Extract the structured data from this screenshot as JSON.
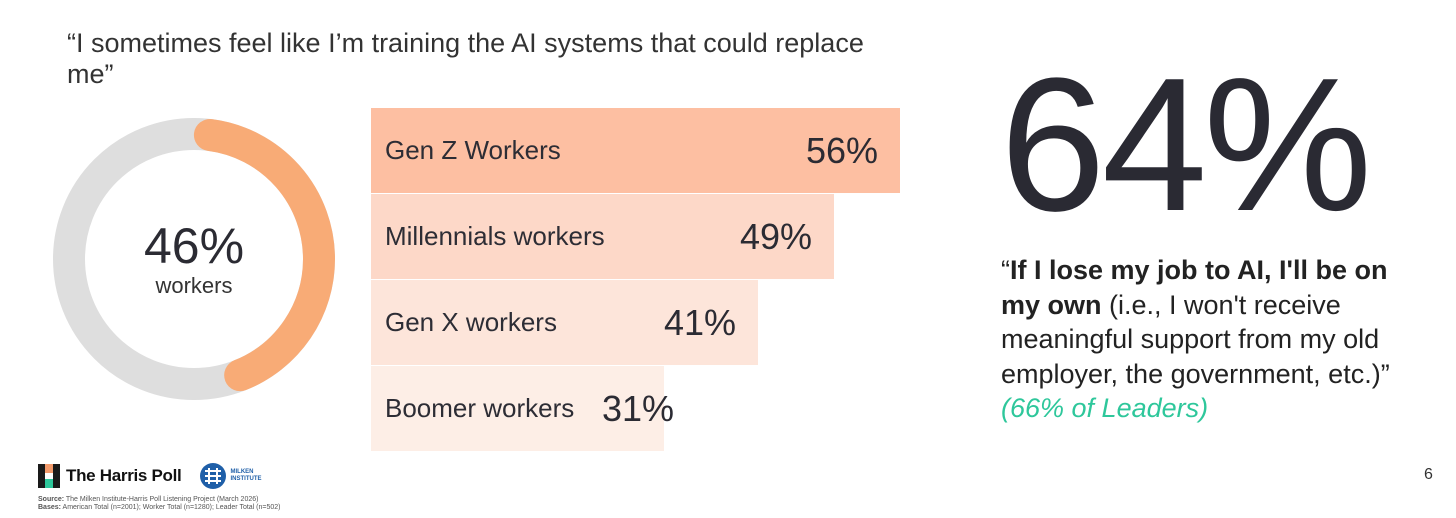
{
  "title": "“I sometimes feel like I’m training the AI systems that could replace me”",
  "donut": {
    "value_label": "46%",
    "sublabel": "workers",
    "percent": 46,
    "fill_color": "#f8ab76",
    "track_color": "#dedede"
  },
  "chart_data": {
    "type": "bar",
    "orientation": "horizontal",
    "categories": [
      "Gen Z Workers",
      "Millennials workers",
      "Gen X workers",
      "Boomer workers"
    ],
    "values": [
      56,
      49,
      41,
      31
    ],
    "value_labels": [
      "56%",
      "49%",
      "41%",
      "31%"
    ],
    "xlim": [
      0,
      100
    ],
    "colors": [
      "#fdbfa2",
      "#fdd8c8",
      "#fde5da",
      "#fdeee6"
    ],
    "title": "",
    "xlabel": "",
    "ylabel": ""
  },
  "highlight": {
    "stat": "64%",
    "quote_open": "“",
    "quote_bold": "If I lose my job to AI, I'll be on my own",
    "quote_rest": " (i.e., I won't receive meaningful support from my old employer, the government, etc.)”",
    "leaders_note": "(66% of Leaders)",
    "accent_color": "#2ec79b"
  },
  "footer": {
    "harris_logo": "The Harris Poll",
    "milken_logo_line1": "MILKEN",
    "milken_logo_line2": "INSTITUTE",
    "source_label": "Source:",
    "source_text": " The Milken Institute-Harris Poll Listening Project (March 2026)",
    "bases_label": "Bases:",
    "bases_text": " American Total (n=2001); Worker Total (n=1280); Leader Total (n=502)",
    "page_number": "6"
  }
}
